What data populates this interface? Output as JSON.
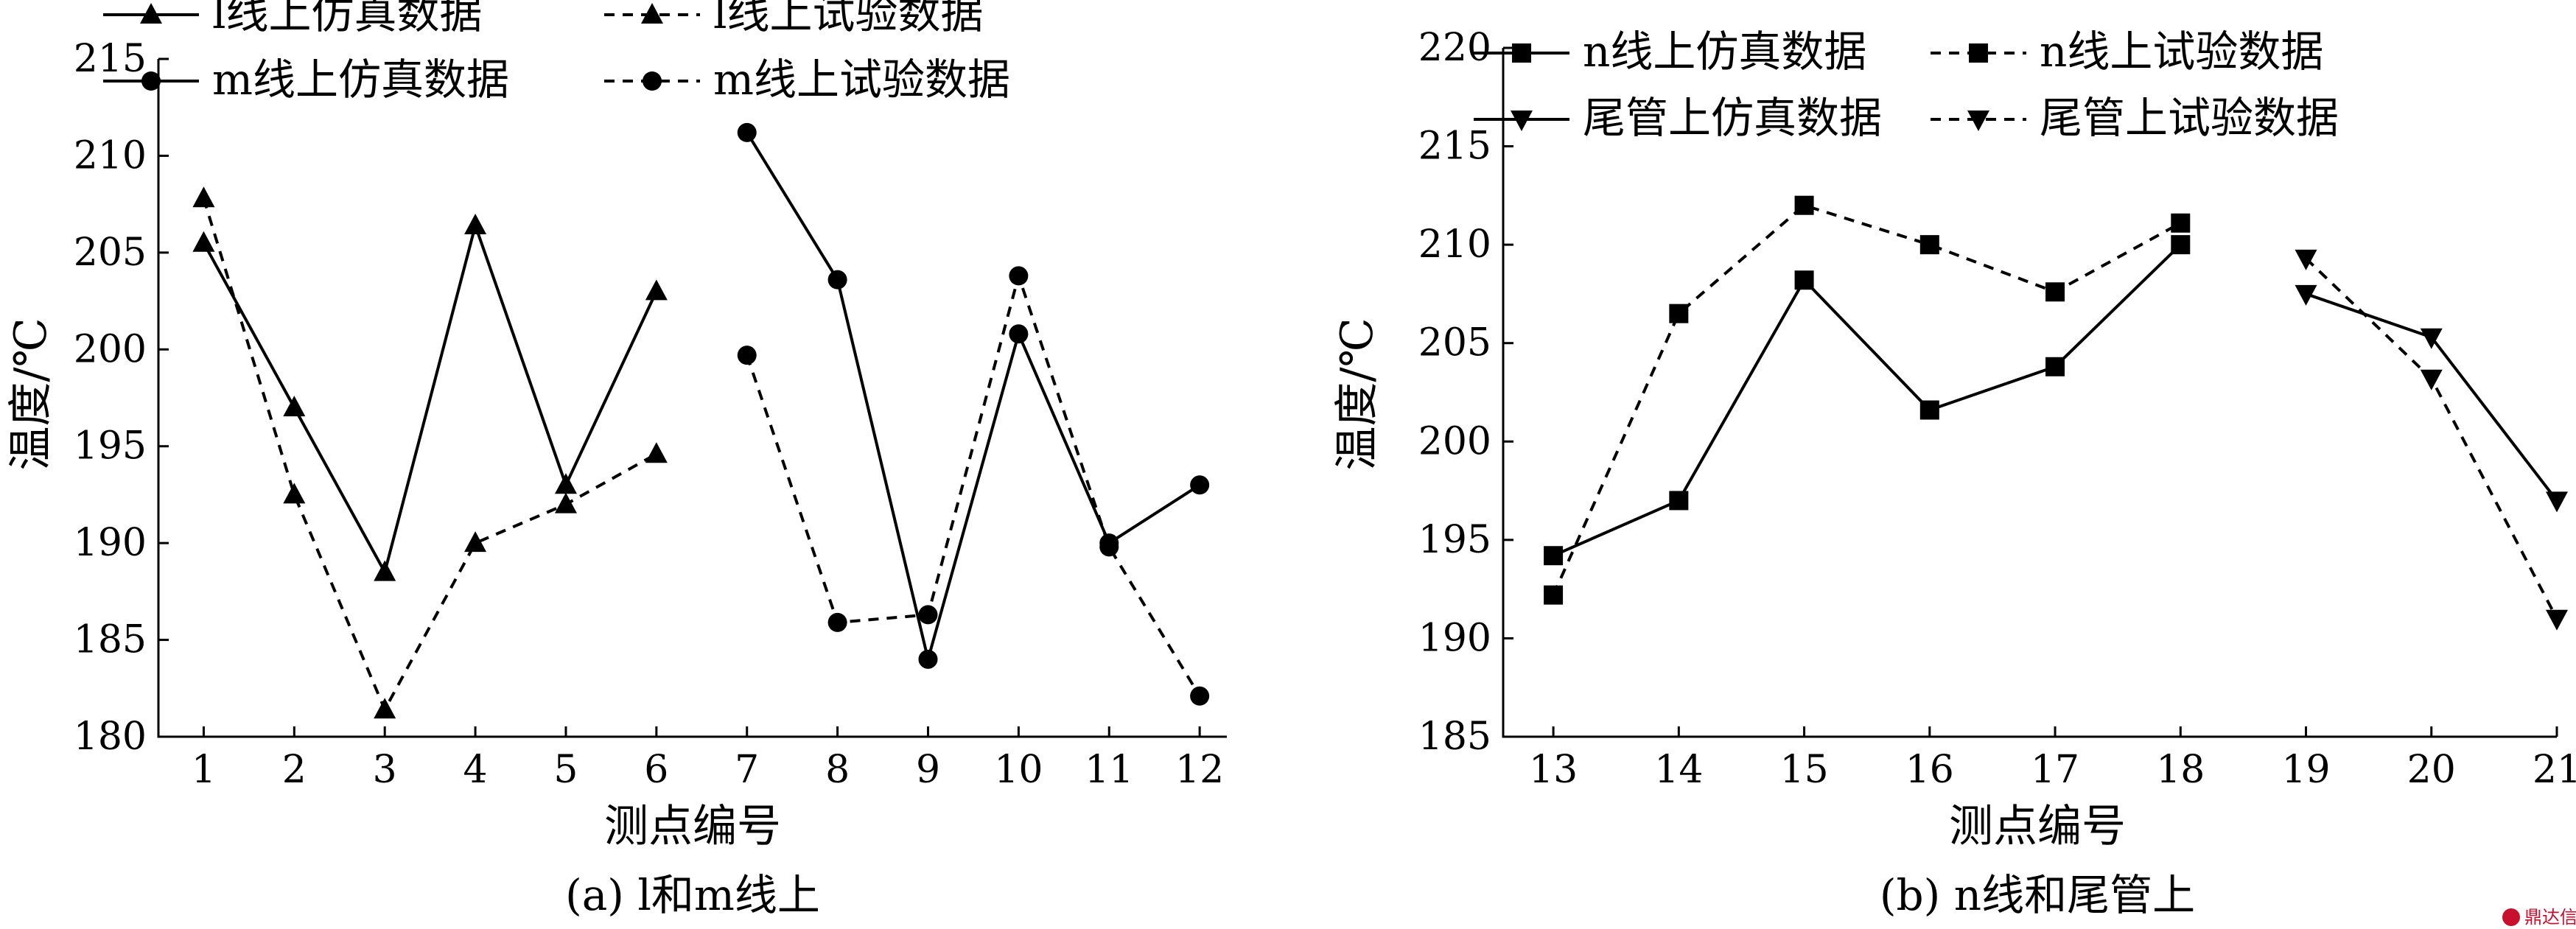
{
  "chart_data": [
    {
      "type": "line",
      "caption": "(a)  l和m线上",
      "xlabel": "测点编号",
      "ylabel": "温度/℃",
      "xticks": [
        "1",
        "2",
        "3",
        "4",
        "5",
        "6",
        "7",
        "8",
        "9",
        "10",
        "11",
        "12"
      ],
      "yticks": [
        "180",
        "185",
        "190",
        "195",
        "200",
        "205",
        "210",
        "215"
      ],
      "xlim": [
        0.5,
        12.3
      ],
      "ylim": [
        180,
        215
      ],
      "grid": false,
      "legend_position": "top",
      "series": [
        {
          "name": "l线上仿真数据",
          "style": "solid",
          "marker": "triangle-up",
          "x": [
            1,
            2,
            3,
            4,
            5,
            6
          ],
          "y": [
            205.5,
            197.0,
            188.5,
            206.4,
            193.0,
            203.0
          ]
        },
        {
          "name": "l线上试验数据",
          "style": "dashed",
          "marker": "triangle-up",
          "x": [
            1,
            2,
            3,
            4,
            5,
            6
          ],
          "y": [
            207.8,
            192.5,
            181.4,
            190.0,
            192.0,
            194.6
          ]
        },
        {
          "name": "m线上仿真数据",
          "style": "solid",
          "marker": "circle",
          "x": [
            7,
            8,
            9,
            10,
            11,
            12
          ],
          "y": [
            211.2,
            203.6,
            184.0,
            200.8,
            190.0,
            193.0
          ]
        },
        {
          "name": "m线上试验数据",
          "style": "dashed",
          "marker": "circle",
          "x": [
            7,
            8,
            9,
            10,
            11,
            12
          ],
          "y": [
            199.7,
            185.9,
            186.3,
            203.8,
            189.8,
            182.1
          ]
        }
      ]
    },
    {
      "type": "line",
      "caption": "(b)  n线和尾管上",
      "xlabel": "测点编号",
      "ylabel": "温度/℃",
      "xticks": [
        "13",
        "14",
        "15",
        "16",
        "17",
        "18",
        "19",
        "20",
        "21"
      ],
      "yticks": [
        "185",
        "190",
        "195",
        "200",
        "205",
        "210",
        "215",
        "220"
      ],
      "xlim": [
        12.6,
        21.0
      ],
      "ylim": [
        185,
        220
      ],
      "grid": false,
      "legend_position": "top",
      "series": [
        {
          "name": "n线上仿真数据",
          "style": "solid",
          "marker": "square",
          "x": [
            13,
            14,
            15,
            16,
            17,
            18
          ],
          "y": [
            194.2,
            197.0,
            208.2,
            201.6,
            203.8,
            210.0
          ]
        },
        {
          "name": "n线上试验数据",
          "style": "dashed",
          "marker": "square",
          "x": [
            13,
            14,
            15,
            16,
            17,
            18
          ],
          "y": [
            192.2,
            206.5,
            212.0,
            210.0,
            207.6,
            211.1
          ]
        },
        {
          "name": "尾管上仿真数据",
          "style": "solid",
          "marker": "triangle-down",
          "x": [
            19,
            20,
            21
          ],
          "y": [
            207.5,
            205.3,
            197.0
          ]
        },
        {
          "name": "尾管上试验数据",
          "style": "dashed",
          "marker": "triangle-down",
          "x": [
            19,
            20,
            21
          ],
          "y": [
            209.3,
            203.2,
            191.0
          ]
        }
      ]
    }
  ],
  "watermark": {
    "text": "鼎达信",
    "color": "#c8102e"
  }
}
